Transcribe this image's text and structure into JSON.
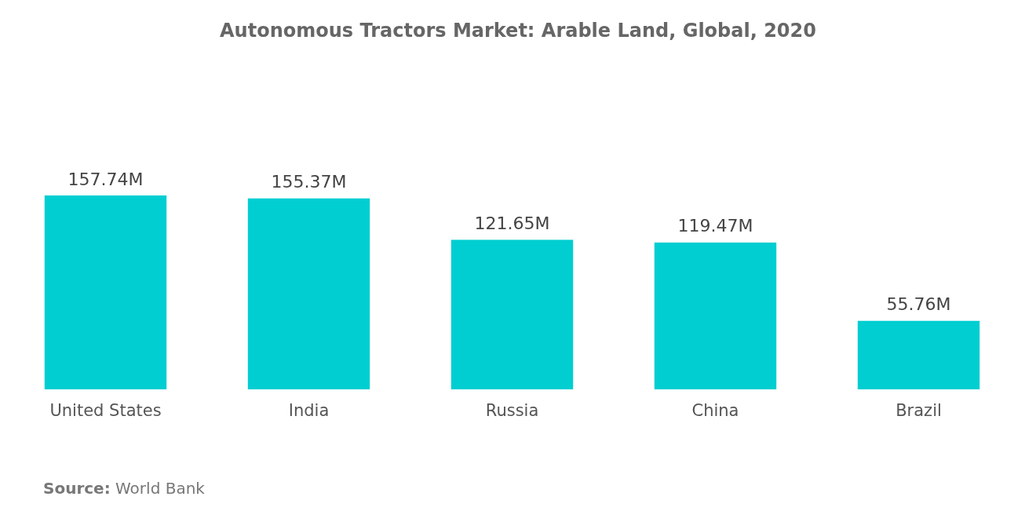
{
  "chart_data": {
    "type": "bar",
    "title": "Autonomous Tractors Market: Arable Land, Global, 2020",
    "categories": [
      "United States",
      "India",
      "Russia",
      "China",
      "Brazil"
    ],
    "values": [
      157.74,
      155.37,
      121.65,
      119.47,
      55.76
    ],
    "value_labels": [
      "157.74M",
      "155.37M",
      "121.65M",
      "119.47M",
      "55.76M"
    ],
    "color": "#00ced1",
    "annotations": [
      "Source: World Bank"
    ]
  }
}
